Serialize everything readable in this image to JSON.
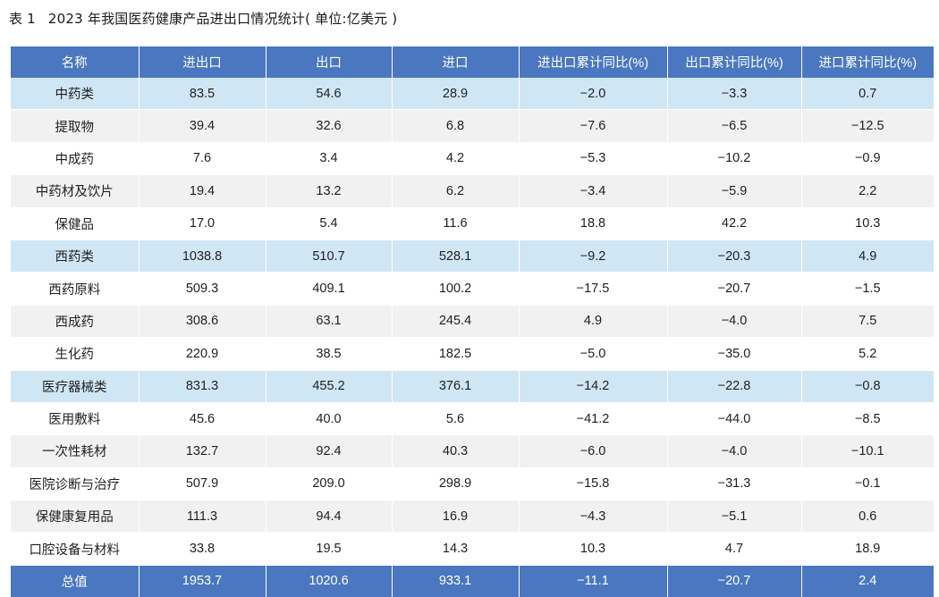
{
  "title": {
    "label": "表 1",
    "text": "2023 年我国医药健康产品进出口情况统计( 单位:亿美元 )"
  },
  "table": {
    "headers": [
      "名称",
      "进出口",
      "出口",
      "进口",
      "进出口累计同比(%)",
      "出口累计同比(%)",
      "进口累计同比(%)"
    ],
    "rows": [
      {
        "type": "category",
        "cells": [
          "中药类",
          "83.5",
          "54.6",
          "28.9",
          "−2.0",
          "−3.3",
          "0.7"
        ]
      },
      {
        "type": "alt",
        "cells": [
          "提取物",
          "39.4",
          "32.6",
          "6.8",
          "−7.6",
          "−6.5",
          "−12.5"
        ]
      },
      {
        "type": "plain",
        "cells": [
          "中成药",
          "7.6",
          "3.4",
          "4.2",
          "−5.3",
          "−10.2",
          "−0.9"
        ]
      },
      {
        "type": "alt",
        "cells": [
          "中药材及饮片",
          "19.4",
          "13.2",
          "6.2",
          "−3.4",
          "−5.9",
          "2.2"
        ]
      },
      {
        "type": "plain",
        "cells": [
          "保健品",
          "17.0",
          "5.4",
          "11.6",
          "18.8",
          "42.2",
          "10.3"
        ]
      },
      {
        "type": "category",
        "cells": [
          "西药类",
          "1038.8",
          "510.7",
          "528.1",
          "−9.2",
          "−20.3",
          "4.9"
        ]
      },
      {
        "type": "plain",
        "cells": [
          "西药原料",
          "509.3",
          "409.1",
          "100.2",
          "−17.5",
          "−20.7",
          "−1.5"
        ]
      },
      {
        "type": "alt",
        "cells": [
          "西成药",
          "308.6",
          "63.1",
          "245.4",
          "4.9",
          "−4.0",
          "7.5"
        ]
      },
      {
        "type": "plain",
        "cells": [
          "生化药",
          "220.9",
          "38.5",
          "182.5",
          "−5.0",
          "−35.0",
          "5.2"
        ]
      },
      {
        "type": "category",
        "cells": [
          "医疗器械类",
          "831.3",
          "455.2",
          "376.1",
          "−14.2",
          "−22.8",
          "−0.8"
        ]
      },
      {
        "type": "plain",
        "cells": [
          "医用敷料",
          "45.6",
          "40.0",
          "5.6",
          "−41.2",
          "−44.0",
          "−8.5"
        ]
      },
      {
        "type": "alt",
        "cells": [
          "一次性耗材",
          "132.7",
          "92.4",
          "40.3",
          "−6.0",
          "−4.0",
          "−10.1"
        ]
      },
      {
        "type": "plain",
        "cells": [
          "医院诊断与治疗",
          "507.9",
          "209.0",
          "298.9",
          "−15.8",
          "−31.3",
          "−0.1"
        ]
      },
      {
        "type": "alt",
        "cells": [
          "保健康复用品",
          "111.3",
          "94.4",
          "16.9",
          "−4.3",
          "−5.1",
          "0.6"
        ]
      },
      {
        "type": "plain",
        "cells": [
          "口腔设备与材料",
          "33.8",
          "19.5",
          "14.3",
          "10.3",
          "4.7",
          "18.9"
        ]
      }
    ],
    "total": [
      "总值",
      "1953.7",
      "1020.6",
      "933.1",
      "−11.1",
      "−20.7",
      "2.4"
    ]
  }
}
